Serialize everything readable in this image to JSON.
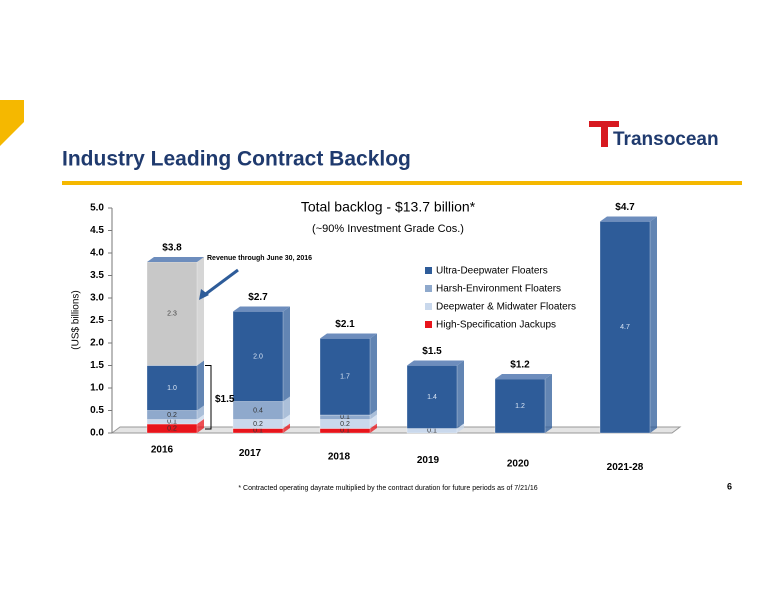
{
  "header": {
    "title": "Industry Leading Contract Backlog",
    "logo": "Transocean",
    "page_number": "6"
  },
  "chart_data": {
    "type": "bar",
    "stacked": true,
    "title": "Total backlog - $13.7 billion*",
    "subtitle": "(~90% Investment Grade Cos.)",
    "y_label": "(US$ billions)",
    "categories": [
      "2016",
      "2017",
      "2018",
      "2019",
      "2020",
      "2021-28"
    ],
    "series": [
      {
        "name": "High-Specification Jackups",
        "color": "#e8141b",
        "values": [
          0.2,
          0.1,
          0.1,
          null,
          null,
          null
        ],
        "value_labels": [
          "0.2",
          "0.1",
          "0.1",
          null,
          null,
          null
        ]
      },
      {
        "name": "Deepwater & Midwater Floaters",
        "color": "#c9d8ec",
        "values": [
          0.1,
          0.2,
          0.2,
          0.1,
          null,
          null
        ],
        "value_labels": [
          "0.1",
          "0.2",
          "0.2",
          "0.1",
          null,
          null
        ]
      },
      {
        "name": "Harsh-Environment Floaters",
        "color": "#8fa9cc",
        "values": [
          0.2,
          0.4,
          0.1,
          null,
          null,
          null
        ],
        "value_labels": [
          "0.2",
          "0.4",
          "0.1",
          null,
          null,
          null
        ]
      },
      {
        "name": "Ultra-Deepwater Floaters",
        "color": "#2e5c99",
        "values": [
          1.0,
          2.0,
          1.7,
          1.4,
          1.2,
          4.7
        ],
        "value_labels": [
          "1.0",
          "2.0",
          "1.7",
          "1.4",
          "1.2",
          "4.7"
        ]
      }
    ],
    "revenue": {
      "label": "Revenue through June 30, 2016",
      "color": "#c8c8c8",
      "values": [
        2.3,
        null,
        null,
        null,
        null,
        null
      ],
      "value_labels": [
        "2.3",
        null,
        null,
        null,
        null,
        null
      ]
    },
    "totals": {
      "values": [
        3.8,
        2.7,
        2.1,
        1.5,
        1.2,
        4.7
      ],
      "value_labels": [
        "$3.8",
        "$2.7",
        "$2.1",
        "$1.5",
        "$1.2",
        "$4.7"
      ]
    },
    "bracket": {
      "value": 1.5,
      "label": "$1.5"
    },
    "ylim": [
      0,
      5
    ],
    "yticks": [
      {
        "value": 0,
        "label": "0.0"
      },
      {
        "value": 0.5,
        "label": "0.5"
      },
      {
        "value": 1,
        "label": "1.0"
      },
      {
        "value": 1.5,
        "label": "1.5"
      },
      {
        "value": 2,
        "label": "2.0"
      },
      {
        "value": 2.5,
        "label": "2.5"
      },
      {
        "value": 3,
        "label": "3.0"
      },
      {
        "value": 3.5,
        "label": "3.5"
      },
      {
        "value": 4,
        "label": "4.0"
      },
      {
        "value": 4.5,
        "label": "4.5"
      },
      {
        "value": 5,
        "label": "5.0"
      }
    ],
    "footnote": "* Contracted operating dayrate multiplied by the contract duration for future periods as of 7/21/16"
  }
}
